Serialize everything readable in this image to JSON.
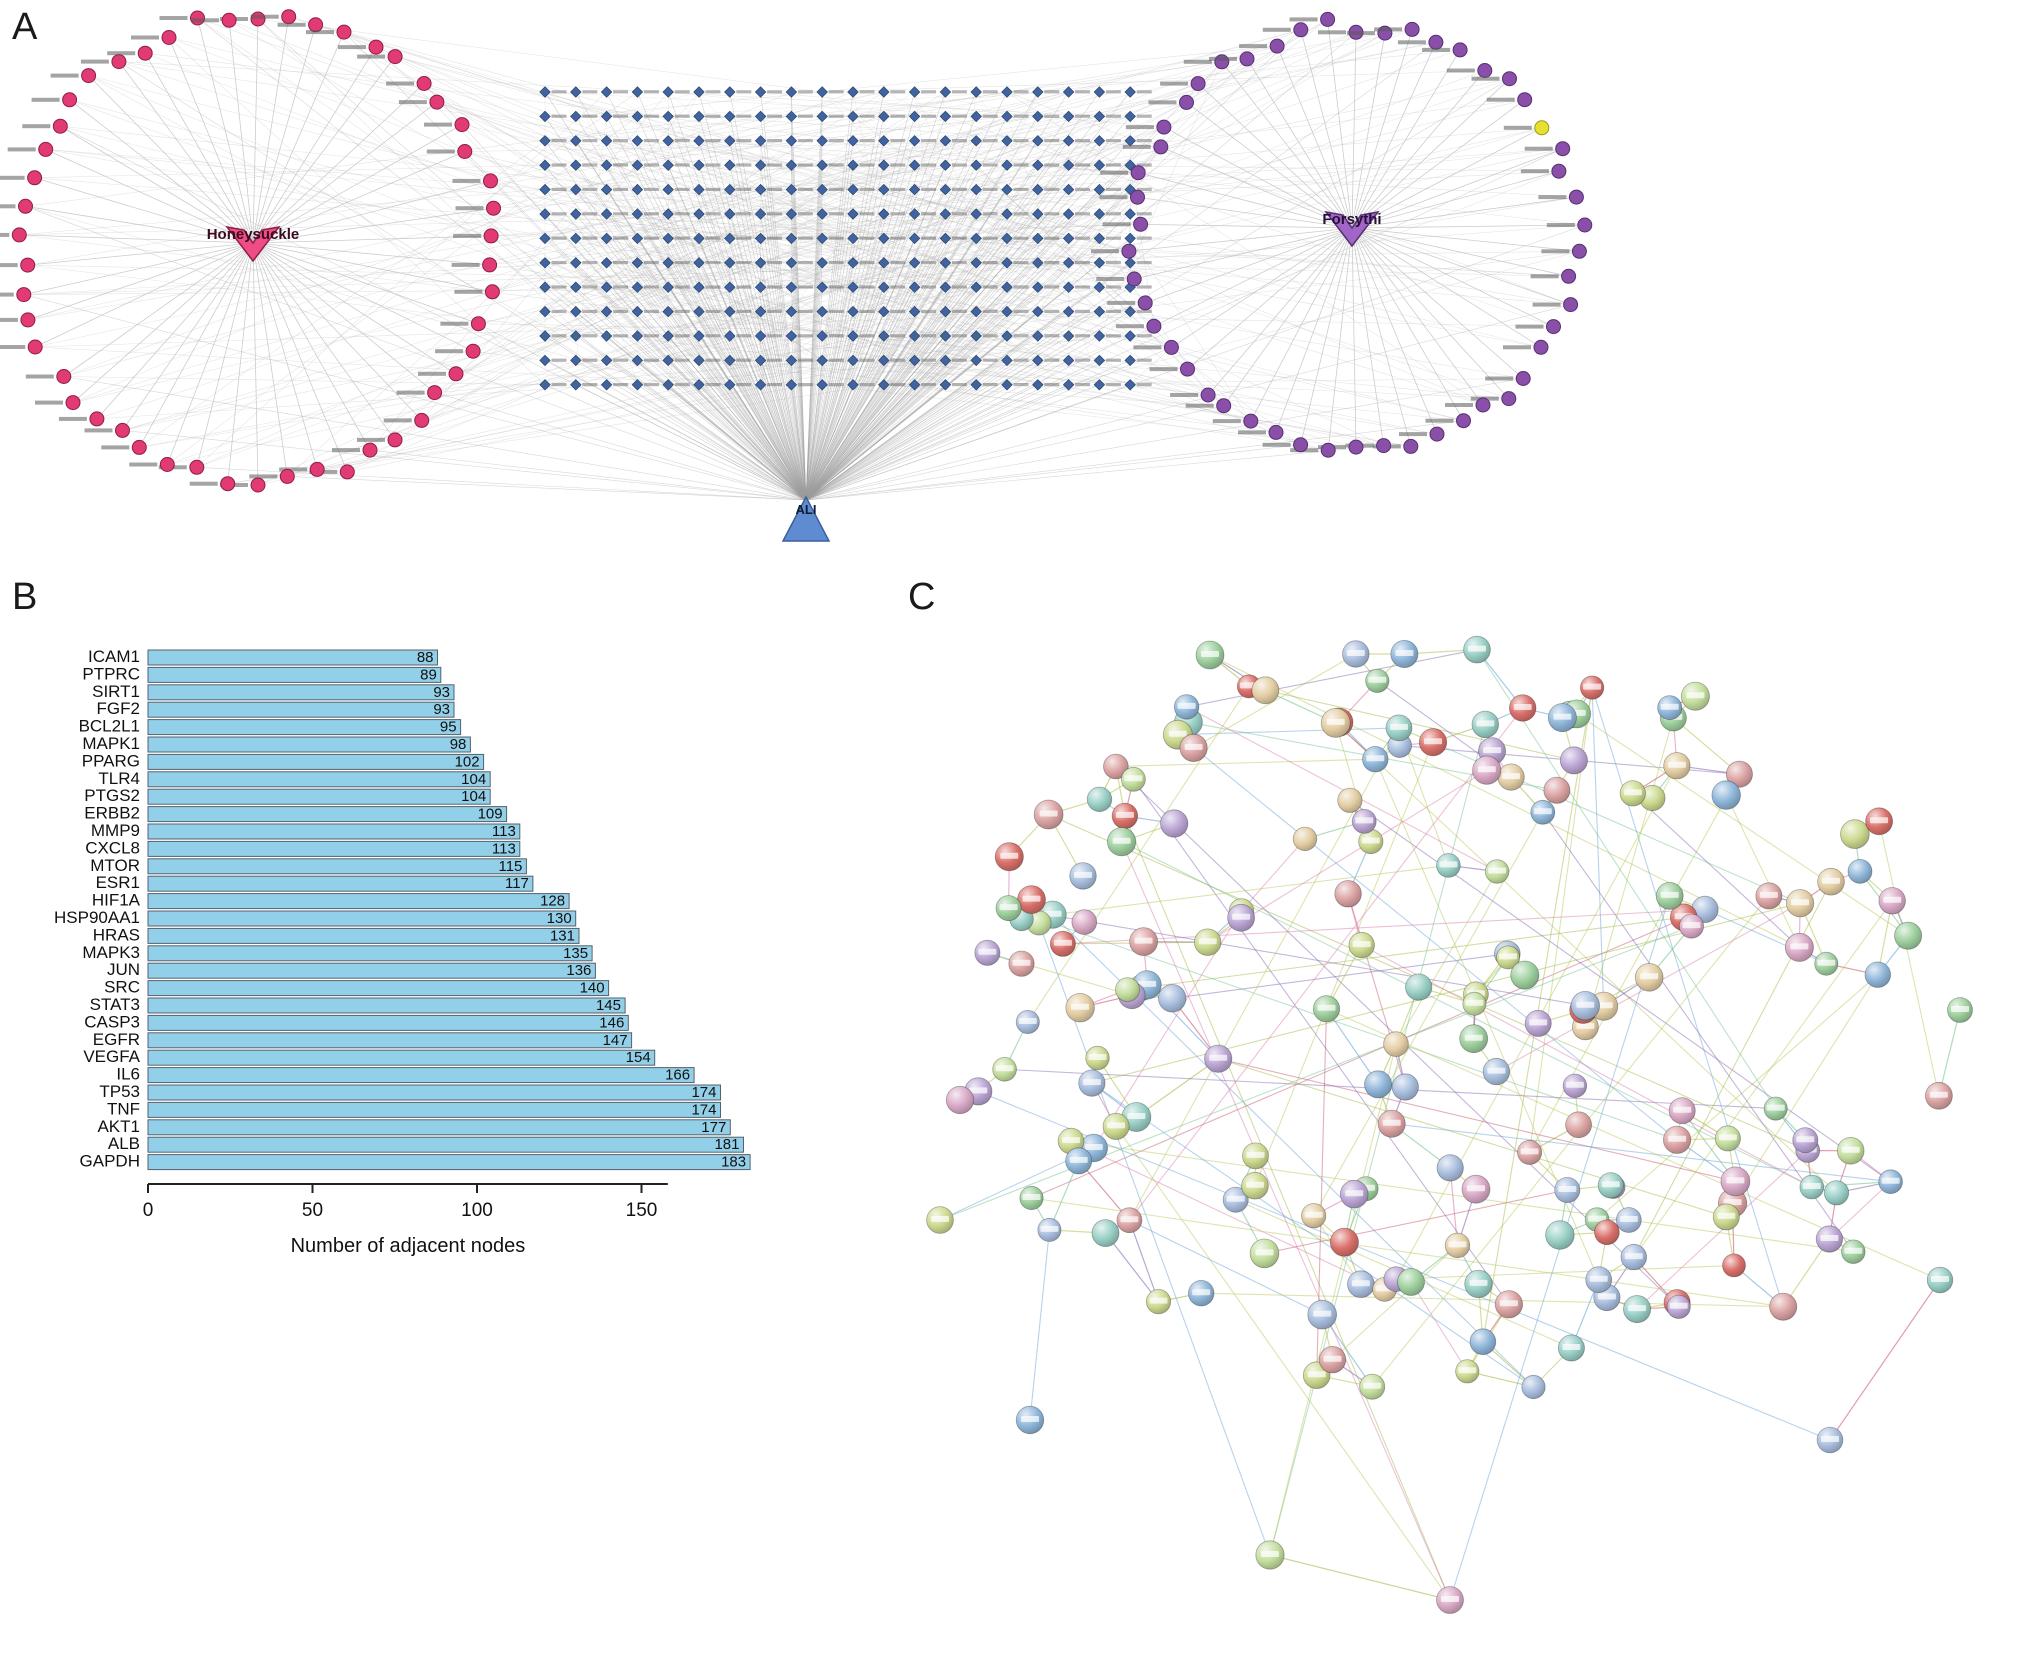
{
  "figure": {
    "panel_a": {
      "label": "A",
      "left_hub_label": "Honeysuckle",
      "right_hub_label": "Forsythi",
      "bottom_hub_label": "ALI",
      "colors": {
        "honeysuckle_node": "#e23a74",
        "honeysuckle_node_border": "#8f1d48",
        "honeysuckle_hub": "#ee4d85",
        "forsythia_node": "#8a4fa8",
        "forsythia_node_border": "#563070",
        "forsythia_hub": "#a065c6",
        "highlight_node": "#e6e033",
        "highlight_node_border": "#9a9a20",
        "target_node": "#41649f",
        "target_node_border": "#28436f",
        "ali_node": "#5f8cd0",
        "ali_node_border": "#3a5f9e",
        "edge": "#bdbdbd"
      }
    },
    "panel_b": {
      "label": "B"
    },
    "panel_c": {
      "label": "C"
    }
  },
  "chart_data": {
    "type": "bar",
    "orientation": "horizontal",
    "title": "",
    "xlabel": "Number of adjacent nodes",
    "ylabel": "",
    "categories": [
      "ICAM1",
      "PTPRC",
      "SIRT1",
      "FGF2",
      "BCL2L1",
      "MAPK1",
      "PPARG",
      "TLR4",
      "PTGS2",
      "ERBB2",
      "MMP9",
      "CXCL8",
      "MTOR",
      "ESR1",
      "HIF1A",
      "HSP90AA1",
      "HRAS",
      "MAPK3",
      "JUN",
      "SRC",
      "STAT3",
      "CASP3",
      "EGFR",
      "VEGFA",
      "IL6",
      "TP53",
      "TNF",
      "AKT1",
      "ALB",
      "GAPDH"
    ],
    "values": [
      88,
      89,
      93,
      93,
      95,
      98,
      102,
      104,
      104,
      109,
      113,
      113,
      115,
      117,
      128,
      130,
      131,
      135,
      136,
      140,
      145,
      146,
      147,
      154,
      166,
      174,
      174,
      177,
      181,
      183
    ],
    "xticks": [
      0,
      50,
      100,
      150
    ],
    "xlim": [
      0,
      190
    ],
    "grid": false,
    "legend": null,
    "bar_color": "#92cfe8",
    "bar_border": "#55616b",
    "axis_color": "#222222"
  }
}
